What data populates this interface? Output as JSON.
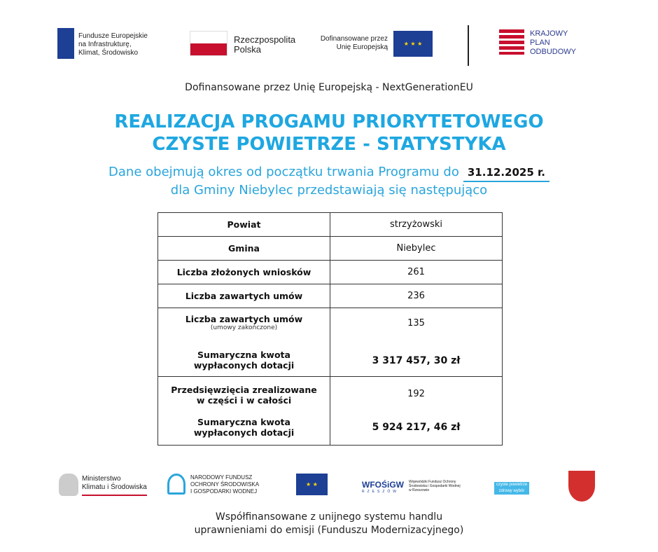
{
  "logos_top": {
    "fe": [
      "Fundusze Europejskie",
      "na Infrastrukturę,",
      "Klimat, Środowisko"
    ],
    "rp": [
      "Rzeczpospolita",
      "Polska"
    ],
    "ue": [
      "Dofinansowane przez",
      "Unię Europejską"
    ],
    "kpo": [
      "KRAJOWY",
      "PLAN",
      "ODBUDOWY"
    ]
  },
  "subtitle": "Dofinansowane przez Unię Europejską -  NextGenerationEU",
  "title": [
    "REALIZACJA PROGAMU PRIORYTETOWEGO",
    "CZYSTE POWIETRZE - STATYSTYKA"
  ],
  "description": {
    "line1": "Dane obejmują okres od początku trwania Programu do",
    "date": "31.12.2025 r.",
    "line2": "dla Gminy Niebylec przedstawiają się następująco"
  },
  "table": {
    "powiat": {
      "label": "Powiat",
      "value": "strzyżowski"
    },
    "gmina": {
      "label": "Gmina",
      "value": "Niebylec"
    },
    "wnioski": {
      "label": "Liczba złożonych wniosków",
      "value": "261"
    },
    "umowy": {
      "label": "Liczba zawartych umów",
      "value": "236"
    },
    "zakonczone": {
      "label": "Liczba zawartych umów",
      "note": "(umowy zakończone)",
      "value": "135",
      "sum_label": [
        "Sumaryczna kwota",
        "wypłaconych dotacji"
      ],
      "sum_value": "3 317 457, 30 zł"
    },
    "zrealizowane": {
      "label": [
        "Przedsięwzięcia zrealizowane",
        "w części i w całości"
      ],
      "value": "192",
      "sum_label": [
        "Sumaryczna kwota",
        "wypłaconych dotacji"
      ],
      "sum_value": "5 924 217, 46 zł"
    }
  },
  "logos_bottom": {
    "mkis": [
      "Ministerstwo",
      "Klimatu i Środowiska"
    ],
    "nfos": [
      "NARODOWY FUNDUSZ",
      "OCHRONY ŚRODOWISKA",
      "I GOSPODARKI WODNEJ"
    ],
    "wfos": "WFOŚiGW",
    "wfos_city": "RZESZÓW",
    "wfos_full": "Wojewódzki Fundusz Ochrony Środowiska i Gospodarki Wodnej w Rzeszowie",
    "cp": [
      "czyste powietrze",
      "zdrowy wybór"
    ]
  },
  "footer": [
    "Współfinansowane z unijnego systemu handlu",
    "uprawnieniami do emisji (Funduszu Modernizacyjnego)"
  ],
  "colors": {
    "accent": "#1ea7e1",
    "eu_blue": "#1d3f94",
    "pl_red": "#c8102e"
  }
}
